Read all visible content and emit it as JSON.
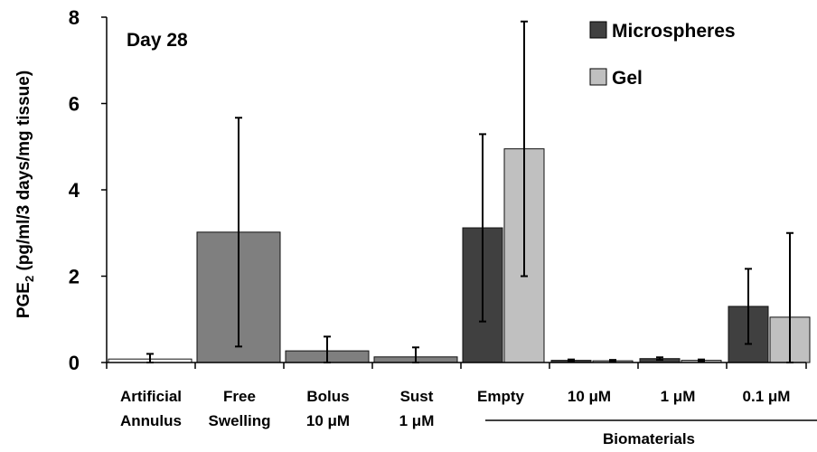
{
  "chart_data": {
    "type": "bar",
    "annotation": "Day 28",
    "ylabel": "PGE",
    "ylabel_subscript": "2",
    "ylabel_rest": " (pg/ml/3 days/mg tissue)",
    "ylim": [
      0,
      8
    ],
    "yticks": [
      0,
      2,
      4,
      6,
      8
    ],
    "grid": false,
    "legend_position": "top-right",
    "groups": [
      {
        "line1": "Artificial",
        "line2": "Annulus"
      },
      {
        "line1": "Free",
        "line2": "Swelling"
      },
      {
        "line1": "Bolus",
        "line2": "10 μM"
      },
      {
        "line1": "Sust",
        "line2": "1 μM"
      },
      {
        "line1": "Empty",
        "line2": ""
      },
      {
        "line1": "10 μM",
        "line2": ""
      },
      {
        "line1": "1 μM",
        "line2": ""
      },
      {
        "line1": "0.1 μM",
        "line2": ""
      }
    ],
    "group_label": "Biomaterials",
    "series": [
      {
        "name": "Microspheres",
        "color": "#404040"
      },
      {
        "name": "Gel",
        "color": "#c0c0c0"
      }
    ],
    "bars": [
      {
        "group": 0,
        "value": 0.08,
        "error": 0.12,
        "color": "#ffffff"
      },
      {
        "group": 1,
        "value": 3.02,
        "error": 2.65,
        "color": "#7f7f7f"
      },
      {
        "group": 2,
        "value": 0.27,
        "error": 0.33,
        "color": "#7f7f7f"
      },
      {
        "group": 3,
        "value": 0.13,
        "error": 0.22,
        "color": "#7f7f7f"
      },
      {
        "group": 4,
        "series": "Microspheres",
        "value": 3.12,
        "error": 2.17,
        "color": "#404040"
      },
      {
        "group": 4,
        "series": "Gel",
        "value": 4.95,
        "error": 2.95,
        "color": "#c0c0c0"
      },
      {
        "group": 5,
        "series": "Microspheres",
        "value": 0.05,
        "error": 0.02,
        "color": "#404040"
      },
      {
        "group": 5,
        "series": "Gel",
        "value": 0.04,
        "error": 0.02,
        "color": "#c0c0c0"
      },
      {
        "group": 6,
        "series": "Microspheres",
        "value": 0.09,
        "error": 0.03,
        "color": "#404040"
      },
      {
        "group": 6,
        "series": "Gel",
        "value": 0.05,
        "error": 0.02,
        "color": "#c0c0c0"
      },
      {
        "group": 7,
        "series": "Microspheres",
        "value": 1.3,
        "error": 0.87,
        "color": "#404040"
      },
      {
        "group": 7,
        "series": "Gel",
        "value": 1.05,
        "error": 1.95,
        "color": "#c0c0c0"
      }
    ]
  }
}
